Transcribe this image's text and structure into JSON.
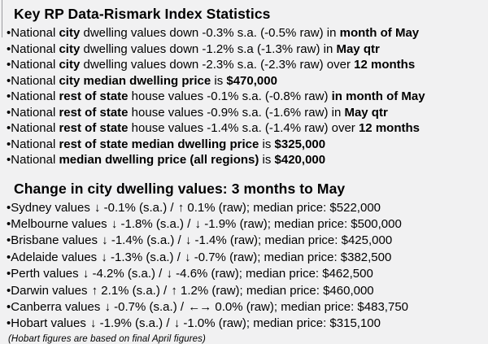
{
  "page": {
    "background": "#f1f1f2",
    "text_color": "#000000"
  },
  "bullet_char": "•",
  "icons": {
    "down_arrow": "↓",
    "up_arrow": "↑",
    "flat_arrow": "←→"
  },
  "section1": {
    "title": "Key RP Data-Rismark Index Statistics",
    "bullets": [
      [
        {
          "t": "National "
        },
        {
          "t": "city",
          "b": 1
        },
        {
          "t": " dwelling values down -0.3% s.a. (-0.5% raw) in "
        },
        {
          "t": "month of May",
          "b": 1
        }
      ],
      [
        {
          "t": "National "
        },
        {
          "t": "city",
          "b": 1
        },
        {
          "t": " dwelling values down -1.2% s.a (-1.3% raw) in "
        },
        {
          "t": "May qtr",
          "b": 1
        }
      ],
      [
        {
          "t": "National "
        },
        {
          "t": "city",
          "b": 1
        },
        {
          "t": " dwelling values down -2.3% s.a. (-2.3% raw) over "
        },
        {
          "t": "12 months",
          "b": 1
        }
      ],
      [
        {
          "t": "National "
        },
        {
          "t": "city median dwelling price",
          "b": 1
        },
        {
          "t": " is "
        },
        {
          "t": "$470,000",
          "b": 1
        }
      ],
      [
        {
          "t": "National "
        },
        {
          "t": "rest of state",
          "b": 1
        },
        {
          "t": " house values -0.1% s.a. (-0.8% raw) "
        },
        {
          "t": "in month of May",
          "b": 1
        }
      ],
      [
        {
          "t": "National "
        },
        {
          "t": "rest of state",
          "b": 1
        },
        {
          "t": " house values -0.9% s.a. (-1.6% raw) in "
        },
        {
          "t": "May qtr",
          "b": 1
        }
      ],
      [
        {
          "t": "National "
        },
        {
          "t": "rest of state",
          "b": 1
        },
        {
          "t": " house values -1.4% s.a. (-1.4% raw) over "
        },
        {
          "t": "12 months",
          "b": 1
        }
      ],
      [
        {
          "t": "National "
        },
        {
          "t": "rest of state median dwelling price",
          "b": 1
        },
        {
          "t": " is "
        },
        {
          "t": "$325,000",
          "b": 1
        }
      ],
      [
        {
          "t": "National "
        },
        {
          "t": "median dwelling price (all regions)",
          "b": 1
        },
        {
          "t": " is "
        },
        {
          "t": "$420,000",
          "b": 1
        }
      ]
    ]
  },
  "section2": {
    "title": "Change in city dwelling values: 3 months to May",
    "rows": [
      [
        {
          "t": "Sydney values "
        },
        {
          "t": "↓",
          "a": 1
        },
        {
          "t": " -0.1% (s.a.) / "
        },
        {
          "t": "↑",
          "a": 1
        },
        {
          "t": " 0.1% (raw); median price: $522,000"
        }
      ],
      [
        {
          "t": "Melbourne values "
        },
        {
          "t": "↓",
          "a": 1
        },
        {
          "t": " -1.8% (s.a.) / "
        },
        {
          "t": "↓",
          "a": 1
        },
        {
          "t": " -1.9% (raw); median price: $500,000"
        }
      ],
      [
        {
          "t": "Brisbane values "
        },
        {
          "t": "↓",
          "a": 1
        },
        {
          "t": " -1.4% (s.a.) / "
        },
        {
          "t": "↓",
          "a": 1
        },
        {
          "t": " -1.4% (raw); median price: $425,000"
        }
      ],
      [
        {
          "t": "Adelaide values "
        },
        {
          "t": "↓",
          "a": 1
        },
        {
          "t": " -1.3% (s.a.) / "
        },
        {
          "t": "↓",
          "a": 1
        },
        {
          "t": " -0.7% (raw); median price: $382,500"
        }
      ],
      [
        {
          "t": "Perth values "
        },
        {
          "t": "↓",
          "a": 1
        },
        {
          "t": " -4.2% (s.a.) / "
        },
        {
          "t": "↓",
          "a": 1
        },
        {
          "t": " -4.6% (raw); median price: $462,500"
        }
      ],
      [
        {
          "t": "Darwin values "
        },
        {
          "t": "↑",
          "a": 1
        },
        {
          "t": " 2.1% (s.a.) / "
        },
        {
          "t": "↑",
          "a": 1
        },
        {
          "t": " 1.2% (raw); median price: $460,000"
        }
      ],
      [
        {
          "t": "Canberra values "
        },
        {
          "t": "↓",
          "a": 1
        },
        {
          "t": " -0.7% (s.a.) / "
        },
        {
          "t": "←→",
          "a": 1
        },
        {
          "t": " 0.0% (raw); median price: $483,750"
        }
      ],
      [
        {
          "t": "Hobart values "
        },
        {
          "t": "↓",
          "a": 1
        },
        {
          "t": " -1.9% (s.a.) / "
        },
        {
          "t": "↓",
          "a": 1
        },
        {
          "t": " -1.0% (raw); median price: $315,100"
        }
      ]
    ],
    "footnote": "(Hobart figures are based on final April figures)"
  }
}
